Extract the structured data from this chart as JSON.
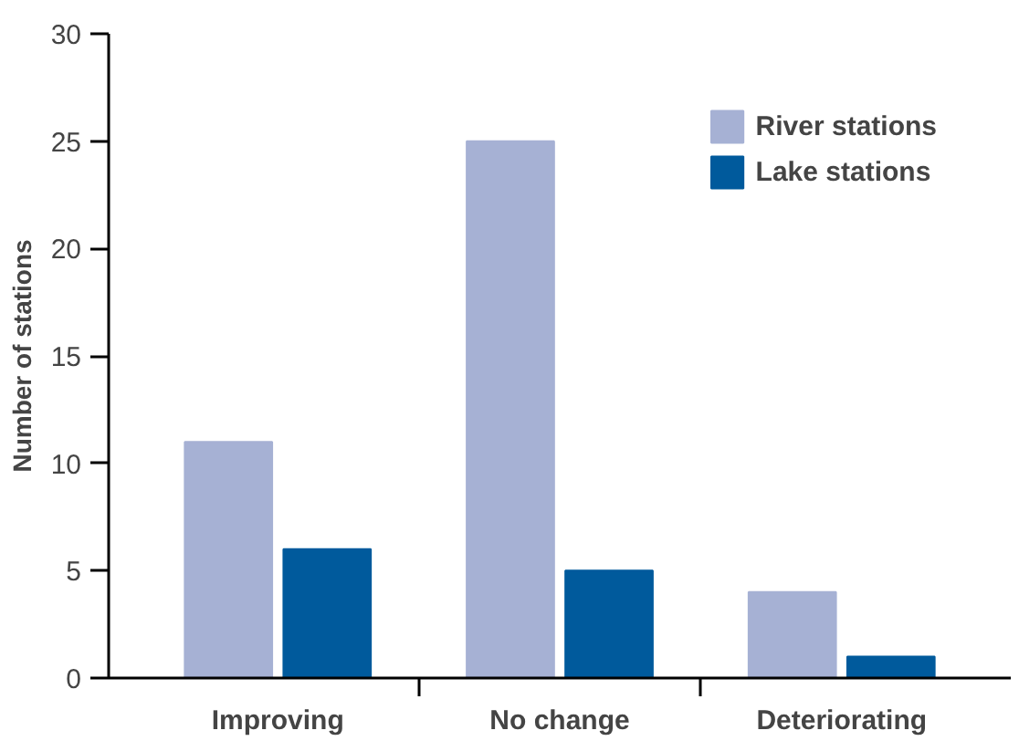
{
  "chart_data": {
    "type": "bar",
    "ylabel": "Number of stations",
    "categories": [
      "Improving",
      "No change",
      "Deteriorating"
    ],
    "series": [
      {
        "name": "River stations",
        "color": "#a6b1d4",
        "values": [
          11,
          25,
          4
        ]
      },
      {
        "name": "Lake stations",
        "color": "#005a9c",
        "values": [
          6,
          5,
          1
        ]
      }
    ],
    "ylim": [
      0,
      30
    ],
    "yticks": [
      0,
      5,
      10,
      15,
      20,
      25,
      30
    ],
    "grid": false,
    "legend": "top right"
  }
}
